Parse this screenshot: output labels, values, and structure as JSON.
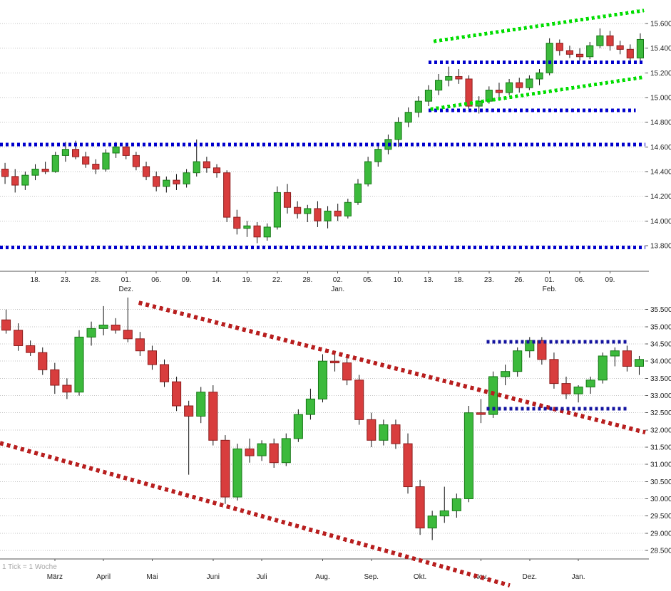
{
  "page": {
    "background": "#ffffff"
  },
  "style": {
    "up_color": "#3cba3c",
    "up_border": "#167716",
    "down_color": "#d83d3d",
    "down_border": "#8c1d1d",
    "wick_color": "#111111",
    "grid_color": "#c4c4c4",
    "axis_color": "#555555",
    "label_color": "#222222",
    "note_color": "#a6a6a6",
    "blue_line": "#0000cc",
    "green_line": "#00dd00",
    "red_line": "#b81f1f"
  },
  "chart_data": [
    {
      "type": "candlestick",
      "name": "daily-candlestick-chart",
      "ylim": [
        13592,
        15790
      ],
      "grid": true,
      "yticks": [
        {
          "v": 15600,
          "t": "15.600"
        },
        {
          "v": 15400,
          "t": "15.400"
        },
        {
          "v": 15200,
          "t": "15.200"
        },
        {
          "v": 15000,
          "t": "15.000"
        },
        {
          "v": 14800,
          "t": "14.800"
        },
        {
          "v": 14600,
          "t": "14.600"
        },
        {
          "v": 14400,
          "t": "14.400"
        },
        {
          "v": 14200,
          "t": "14.200"
        },
        {
          "v": 14000,
          "t": "14.000"
        },
        {
          "v": 13800,
          "t": "13.800"
        }
      ],
      "x_labels": [
        {
          "t": "18.",
          "c": 3,
          "row": 0
        },
        {
          "t": "23.",
          "c": 6,
          "row": 0
        },
        {
          "t": "28.",
          "c": 9,
          "row": 0
        },
        {
          "t": "01.",
          "c": 12,
          "row": 0
        },
        {
          "t": "06.",
          "c": 15,
          "row": 0
        },
        {
          "t": "09.",
          "c": 18,
          "row": 0
        },
        {
          "t": "14.",
          "c": 21,
          "row": 0
        },
        {
          "t": "19.",
          "c": 24,
          "row": 0
        },
        {
          "t": "22.",
          "c": 27,
          "row": 0
        },
        {
          "t": "28.",
          "c": 30,
          "row": 0
        },
        {
          "t": "02.",
          "c": 33,
          "row": 0
        },
        {
          "t": "05.",
          "c": 36,
          "row": 0
        },
        {
          "t": "10.",
          "c": 39,
          "row": 0
        },
        {
          "t": "13.",
          "c": 42,
          "row": 0
        },
        {
          "t": "18.",
          "c": 45,
          "row": 0
        },
        {
          "t": "23.",
          "c": 48,
          "row": 0
        },
        {
          "t": "26.",
          "c": 51,
          "row": 0
        },
        {
          "t": "01.",
          "c": 54,
          "row": 0
        },
        {
          "t": "06.",
          "c": 57,
          "row": 0
        },
        {
          "t": "09.",
          "c": 60,
          "row": 0
        },
        {
          "t": "Dez.",
          "c": 12,
          "row": 1
        },
        {
          "t": "Jan.",
          "c": 33,
          "row": 1
        },
        {
          "t": "Feb.",
          "c": 54,
          "row": 1
        }
      ],
      "candles": [
        [
          14420,
          14470,
          14300,
          14360
        ],
        [
          14360,
          14420,
          14230,
          14290
        ],
        [
          14290,
          14400,
          14250,
          14370
        ],
        [
          14370,
          14460,
          14330,
          14420
        ],
        [
          14420,
          14480,
          14380,
          14400
        ],
        [
          14400,
          14560,
          14390,
          14530
        ],
        [
          14530,
          14640,
          14480,
          14580
        ],
        [
          14580,
          14650,
          14500,
          14520
        ],
        [
          14520,
          14560,
          14430,
          14460
        ],
        [
          14460,
          14500,
          14380,
          14420
        ],
        [
          14420,
          14580,
          14400,
          14550
        ],
        [
          14550,
          14640,
          14510,
          14600
        ],
        [
          14600,
          14630,
          14500,
          14530
        ],
        [
          14530,
          14560,
          14410,
          14440
        ],
        [
          14440,
          14480,
          14330,
          14360
        ],
        [
          14360,
          14400,
          14240,
          14280
        ],
        [
          14280,
          14360,
          14230,
          14330
        ],
        [
          14330,
          14380,
          14250,
          14300
        ],
        [
          14300,
          14420,
          14270,
          14390
        ],
        [
          14390,
          14660,
          14360,
          14480
        ],
        [
          14480,
          14520,
          14390,
          14430
        ],
        [
          14430,
          14460,
          14350,
          14390
        ],
        [
          14390,
          14410,
          13990,
          14030
        ],
        [
          14030,
          14090,
          13890,
          13940
        ],
        [
          13940,
          14000,
          13870,
          13960
        ],
        [
          13960,
          13990,
          13820,
          13870
        ],
        [
          13870,
          13980,
          13840,
          13950
        ],
        [
          13950,
          14280,
          13930,
          14230
        ],
        [
          14230,
          14300,
          14060,
          14110
        ],
        [
          14110,
          14160,
          14020,
          14060
        ],
        [
          14060,
          14130,
          13990,
          14100
        ],
        [
          14100,
          14160,
          13950,
          14000
        ],
        [
          14000,
          14120,
          13940,
          14080
        ],
        [
          14080,
          14140,
          14000,
          14040
        ],
        [
          14040,
          14180,
          14020,
          14150
        ],
        [
          14150,
          14340,
          14130,
          14300
        ],
        [
          14300,
          14520,
          14280,
          14480
        ],
        [
          14480,
          14620,
          14440,
          14580
        ],
        [
          14580,
          14700,
          14540,
          14660
        ],
        [
          14660,
          14840,
          14600,
          14800
        ],
        [
          14800,
          14920,
          14760,
          14880
        ],
        [
          14880,
          15010,
          14840,
          14970
        ],
        [
          14970,
          15100,
          14930,
          15060
        ],
        [
          15060,
          15190,
          15020,
          15140
        ],
        [
          15140,
          15250,
          15090,
          15170
        ],
        [
          15170,
          15230,
          15110,
          15150
        ],
        [
          15150,
          15180,
          14890,
          14930
        ],
        [
          14930,
          15010,
          14870,
          14970
        ],
        [
          14970,
          15090,
          14950,
          15060
        ],
        [
          15060,
          15120,
          15000,
          15040
        ],
        [
          15040,
          15150,
          15020,
          15120
        ],
        [
          15120,
          15160,
          15040,
          15080
        ],
        [
          15080,
          15180,
          15060,
          15150
        ],
        [
          15150,
          15230,
          15100,
          15200
        ],
        [
          15200,
          15480,
          15180,
          15440
        ],
        [
          15440,
          15470,
          15340,
          15380
        ],
        [
          15380,
          15420,
          15320,
          15350
        ],
        [
          15350,
          15400,
          15300,
          15330
        ],
        [
          15330,
          15450,
          15310,
          15420
        ],
        [
          15420,
          15560,
          15400,
          15500
        ],
        [
          15500,
          15540,
          15380,
          15420
        ],
        [
          15420,
          15460,
          15350,
          15390
        ],
        [
          15390,
          15430,
          15280,
          15320
        ],
        [
          15320,
          15520,
          15300,
          15470
        ]
      ],
      "overlays": [
        {
          "name": "support-line-13800",
          "color": "#0000cc",
          "w": 5,
          "dash": [
            4,
            4
          ],
          "x1": 0.0,
          "x2": 1.0,
          "v1": 13785,
          "v2": 13785
        },
        {
          "name": "resistance-line-14600",
          "color": "#0000cc",
          "w": 5,
          "dash": [
            4,
            4
          ],
          "x1": 0.0,
          "x2": 1.0,
          "v1": 14620,
          "v2": 14620
        },
        {
          "name": "resistance-line-15280",
          "color": "#0000cc",
          "w": 5,
          "dash": [
            4,
            4
          ],
          "x1": 0.664,
          "x2": 1.0,
          "v1": 15285,
          "v2": 15285
        },
        {
          "name": "support-line-14900",
          "color": "#0000cc",
          "w": 5,
          "dash": [
            4,
            4
          ],
          "x1": 0.664,
          "x2": 0.985,
          "v1": 14895,
          "v2": 14895
        },
        {
          "name": "uptrend-line-upper",
          "color": "#00dd00",
          "w": 5,
          "dash": [
            4,
            4
          ],
          "x1": 0.672,
          "x2": 0.998,
          "v1": 15455,
          "v2": 15705
        },
        {
          "name": "uptrend-line-lower",
          "color": "#00dd00",
          "w": 5,
          "dash": [
            4,
            4
          ],
          "x1": 0.667,
          "x2": 0.998,
          "v1": 14905,
          "v2": 15165
        }
      ]
    },
    {
      "type": "candlestick",
      "name": "weekly-candlestick-chart",
      "note": "1 Tick = 1 Woche",
      "ylim": [
        28250,
        35950
      ],
      "grid": true,
      "yticks": [
        {
          "v": 35500,
          "t": "35.500"
        },
        {
          "v": 35000,
          "t": "35.000"
        },
        {
          "v": 34500,
          "t": "34.500"
        },
        {
          "v": 34000,
          "t": "34.000"
        },
        {
          "v": 33500,
          "t": "33.500"
        },
        {
          "v": 33000,
          "t": "33.000"
        },
        {
          "v": 32500,
          "t": "32.500"
        },
        {
          "v": 32000,
          "t": "32.000"
        },
        {
          "v": 31500,
          "t": "31.500"
        },
        {
          "v": 31000,
          "t": "31.000"
        },
        {
          "v": 30500,
          "t": "30.500"
        },
        {
          "v": 30000,
          "t": "30.000"
        },
        {
          "v": 29500,
          "t": "29.500"
        },
        {
          "v": 29000,
          "t": "29.000"
        },
        {
          "v": 28500,
          "t": "28.500"
        }
      ],
      "x_labels": [
        {
          "t": "März",
          "c": 4,
          "row": 1
        },
        {
          "t": "April",
          "c": 8,
          "row": 1
        },
        {
          "t": "Mai",
          "c": 12,
          "row": 1
        },
        {
          "t": "Juni",
          "c": 17,
          "row": 1
        },
        {
          "t": "Juli",
          "c": 21,
          "row": 1
        },
        {
          "t": "Aug.",
          "c": 26,
          "row": 1
        },
        {
          "t": "Sep.",
          "c": 30,
          "row": 1
        },
        {
          "t": "Okt.",
          "c": 34,
          "row": 1
        },
        {
          "t": "Nov.",
          "c": 39,
          "row": 1
        },
        {
          "t": "Dez.",
          "c": 43,
          "row": 1
        },
        {
          "t": "Jan.",
          "c": 47,
          "row": 1
        }
      ],
      "candles": [
        [
          35200,
          35500,
          34800,
          34900
        ],
        [
          34900,
          35100,
          34300,
          34450
        ],
        [
          34450,
          34600,
          34150,
          34250
        ],
        [
          34250,
          34400,
          33600,
          33750
        ],
        [
          33750,
          33950,
          33050,
          33300
        ],
        [
          33300,
          33500,
          32900,
          33100
        ],
        [
          33100,
          34900,
          33000,
          34700
        ],
        [
          34700,
          35150,
          34450,
          34950
        ],
        [
          34950,
          35600,
          34750,
          35050
        ],
        [
          35050,
          35250,
          34800,
          34900
        ],
        [
          34900,
          35850,
          34550,
          34650
        ],
        [
          34650,
          34850,
          34150,
          34300
        ],
        [
          34300,
          34450,
          33750,
          33900
        ],
        [
          33900,
          34050,
          33250,
          33400
        ],
        [
          33400,
          33550,
          32550,
          32700
        ],
        [
          32700,
          32850,
          30700,
          32400
        ],
        [
          32400,
          33250,
          32200,
          33100
        ],
        [
          33100,
          33300,
          31550,
          31700
        ],
        [
          31700,
          31850,
          29850,
          30050
        ],
        [
          30050,
          31600,
          29950,
          31450
        ],
        [
          31450,
          31750,
          31050,
          31250
        ],
        [
          31250,
          31700,
          31100,
          31600
        ],
        [
          31600,
          31750,
          30900,
          31050
        ],
        [
          31050,
          31900,
          30950,
          31750
        ],
        [
          31750,
          32600,
          31650,
          32450
        ],
        [
          32450,
          33200,
          32300,
          32900
        ],
        [
          32900,
          34200,
          32800,
          34000
        ],
        [
          34000,
          34300,
          33700,
          33950
        ],
        [
          33950,
          34100,
          33300,
          33450
        ],
        [
          33450,
          33600,
          32150,
          32300
        ],
        [
          32300,
          32500,
          31500,
          31700
        ],
        [
          31700,
          32300,
          31550,
          32150
        ],
        [
          32150,
          32300,
          31450,
          31600
        ],
        [
          31600,
          31900,
          30150,
          30350
        ],
        [
          30350,
          30550,
          28950,
          29150
        ],
        [
          29150,
          29650,
          28800,
          29500
        ],
        [
          29500,
          30350,
          29300,
          29650
        ],
        [
          29650,
          30150,
          29450,
          30000
        ],
        [
          30000,
          32700,
          29900,
          32500
        ],
        [
          32500,
          32900,
          32200,
          32450
        ],
        [
          32450,
          33700,
          32350,
          33550
        ],
        [
          33550,
          33900,
          33300,
          33700
        ],
        [
          33700,
          34400,
          33550,
          34300
        ],
        [
          34300,
          34700,
          34100,
          34600
        ],
        [
          34600,
          34700,
          33900,
          34050
        ],
        [
          34050,
          34250,
          33200,
          33350
        ],
        [
          33350,
          33550,
          32900,
          33050
        ],
        [
          33050,
          33300,
          32800,
          33250
        ],
        [
          33250,
          33550,
          33050,
          33450
        ],
        [
          33450,
          34250,
          33350,
          34150
        ],
        [
          34150,
          34400,
          33850,
          34300
        ],
        [
          34300,
          34450,
          33700,
          33850
        ],
        [
          33850,
          34150,
          33600,
          34050
        ]
      ],
      "overlays": [
        {
          "name": "downtrend-channel-upper",
          "color": "#b81f1f",
          "w": 6,
          "dash": [
            5,
            5
          ],
          "x1": 0.215,
          "x2": 1.0,
          "v1": 35700,
          "v2": 31930
        },
        {
          "name": "downtrend-channel-lower",
          "color": "#b81f1f",
          "w": 6,
          "dash": [
            5,
            5
          ],
          "x1": 0.0,
          "x2": 0.79,
          "v1": 31620,
          "v2": 27480
        },
        {
          "name": "resistance-line-34550",
          "color": "#1414a0",
          "w": 5,
          "dash": [
            4,
            4
          ],
          "x1": 0.754,
          "x2": 0.974,
          "v1": 34560,
          "v2": 34560
        },
        {
          "name": "support-line-32600",
          "color": "#1414a0",
          "w": 5,
          "dash": [
            4,
            4
          ],
          "x1": 0.754,
          "x2": 0.974,
          "v1": 32620,
          "v2": 32620
        }
      ]
    }
  ]
}
